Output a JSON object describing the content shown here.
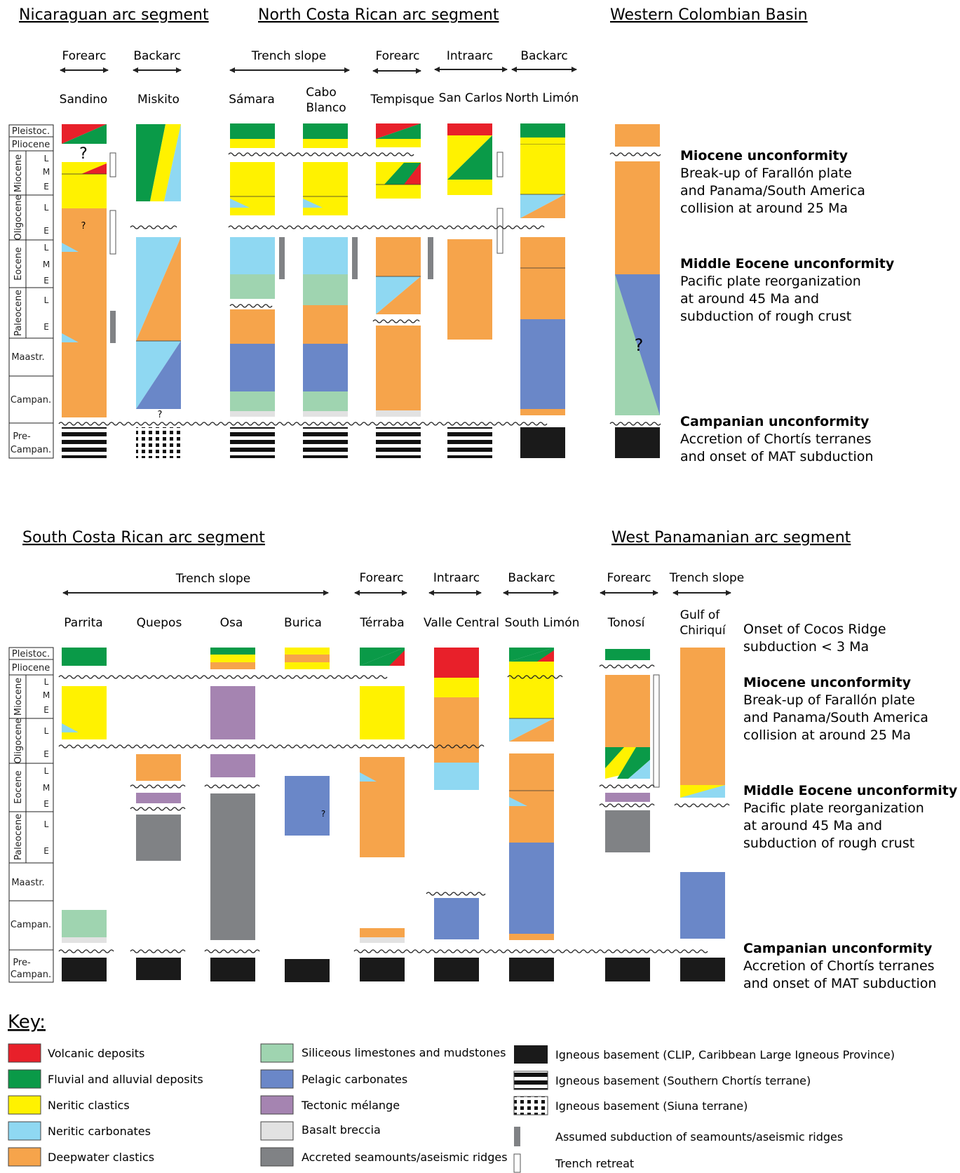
{
  "colors": {
    "volcanic": "#e8202a",
    "fluvial": "#0a9a48",
    "neritic_clastics": "#fff200",
    "neritic_carbonates": "#8fd8f2",
    "deepwater": "#f6a44b",
    "siliceous": "#9fd4b0",
    "pelagic": "#6a87c8",
    "melange": "#a584b1",
    "basalt_breccia": "#e2e2e2",
    "seamounts": "#808285",
    "clip": "#1a1a1a"
  },
  "top_panel": {
    "segments": [
      "Nicaraguan arc segment",
      "North Costa Rican arc segment",
      "Western Colombian Basin"
    ],
    "settings": [
      "Forearc",
      "Backarc",
      "Trench slope",
      "Forearc",
      "Intraarc",
      "Backarc"
    ],
    "columns": [
      "Sandino",
      "Miskito",
      "Sámara",
      "Cabo",
      "Blanco",
      "Tempisque",
      "San Carlos",
      "North Limón"
    ],
    "age_labels": [
      "Pleistoc.",
      "Pliocene",
      "Miocene",
      "Oligocene",
      "Eocene",
      "Paleocene",
      "Maastr.",
      "Campan.",
      "Pre-",
      "Campan."
    ],
    "sub_labels": [
      "L",
      "M",
      "E",
      "L",
      "E",
      "L",
      "M",
      "E",
      "L",
      "E"
    ],
    "question_marks": [
      "?",
      "?",
      "?",
      "?"
    ],
    "events": [
      {
        "title": "Miocene unconformity",
        "lines": [
          "Break-up of Farallón plate",
          "and Panama/South America",
          "collision at around 25 Ma"
        ]
      },
      {
        "title": "Middle Eocene unconformity",
        "lines": [
          "Pacific plate reorganization",
          "at around 45 Ma and",
          "subduction of rough crust"
        ]
      },
      {
        "title": "Campanian unconformity",
        "lines": [
          "Accretion of Chortís terranes",
          "and onset of MAT subduction"
        ]
      }
    ]
  },
  "bottom_panel": {
    "segments": [
      "South Costa Rican arc segment",
      "West Panamanian arc segment"
    ],
    "settings": [
      "Trench slope",
      "Forearc",
      "Intraarc",
      "Backarc",
      "Forearc",
      "Trench slope"
    ],
    "columns": [
      "Parrita",
      "Quepos",
      "Osa",
      "Burica",
      "Térraba",
      "Valle Central",
      "South Limón",
      "Tonosí",
      "Gulf of",
      "Chiriquí"
    ],
    "question_marks": [
      "?"
    ],
    "events": [
      {
        "title": "",
        "lines": [
          "Onset of Cocos Ridge",
          "subduction < 3 Ma"
        ]
      },
      {
        "title": "Miocene unconformity",
        "lines": [
          "Break-up of Farallón plate",
          "and Panama/South America",
          "collision at around 25 Ma"
        ]
      },
      {
        "title": "Middle Eocene unconformity",
        "lines": [
          "Pacific plate reorganization",
          "at around 45 Ma and",
          "subduction of rough crust"
        ]
      },
      {
        "title": "Campanian unconformity",
        "lines": [
          "Accretion of Chortís terranes",
          "and onset of MAT subduction"
        ]
      }
    ]
  },
  "key": {
    "title": "Key:",
    "items": [
      {
        "label": "Volcanic deposits",
        "kind": "volcanic"
      },
      {
        "label": "Fluvial and alluvial deposits",
        "kind": "fluvial"
      },
      {
        "label": "Neritic clastics",
        "kind": "neritic_clastics"
      },
      {
        "label": "Neritic carbonates",
        "kind": "neritic_carbonates"
      },
      {
        "label": "Deepwater clastics",
        "kind": "deepwater"
      },
      {
        "label": "Siliceous limestones and mudstones",
        "kind": "siliceous"
      },
      {
        "label": "Pelagic carbonates",
        "kind": "pelagic"
      },
      {
        "label": "Tectonic mélange",
        "kind": "melange"
      },
      {
        "label": "Basalt breccia",
        "kind": "basalt_breccia"
      },
      {
        "label": "Accreted seamounts/aseismic ridges",
        "kind": "seamounts"
      },
      {
        "label": "Igneous basement (CLIP, Caribbean Large Igneous Province)",
        "kind": "clip"
      },
      {
        "label": "Igneous basement (Southern Chortís terrane)",
        "kind": "chortis"
      },
      {
        "label": "Igneous basement (Siuna terrane)",
        "kind": "siuna"
      },
      {
        "label": "Assumed subduction of seamounts/aseismic ridges",
        "kind": "seamount_bar"
      },
      {
        "label": "Trench retreat",
        "kind": "trench_bar"
      }
    ]
  }
}
